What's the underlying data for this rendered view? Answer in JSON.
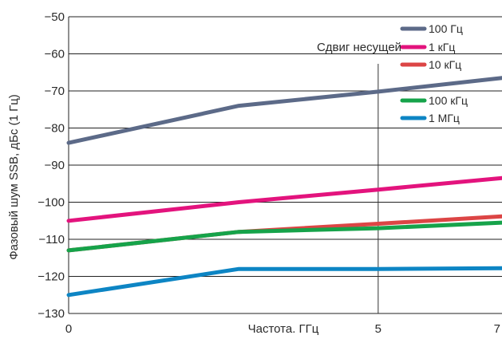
{
  "chart_data": {
    "type": "line",
    "xlabel": "Частота. ГГц",
    "ylabel": "Фазовый шум SSB, дБс (1 Гц)",
    "xlim": [
      0,
      7
    ],
    "ylim": [
      -130,
      -50
    ],
    "x_ticks": [
      "0",
      "5",
      "7"
    ],
    "y_ticks": [
      "−50",
      "−60",
      "−70",
      "−80",
      "−90",
      "−100",
      "−110",
      "−120",
      "−130"
    ],
    "grid": "horizontal",
    "legend_title": "Сдвиг несущей",
    "legend_position": "top-right",
    "series": [
      {
        "name": "100 Гц",
        "color": "#5c6a88",
        "x": [
          0,
          2.75,
          5,
          7
        ],
        "y": [
          -84,
          -74,
          -70.2,
          -66.5
        ]
      },
      {
        "name": "1 кГц",
        "color": "#e3137d",
        "x": [
          0,
          2.75,
          5,
          7
        ],
        "y": [
          -105,
          -100,
          -96.6,
          -93.5
        ]
      },
      {
        "name": "10 кГц",
        "color": "#dc4545",
        "x": [
          0,
          2.75,
          5,
          7
        ],
        "y": [
          -113,
          -108,
          -105.8,
          -103.8
        ]
      },
      {
        "name": "100 кГц",
        "color": "#16a34a",
        "x": [
          0,
          2.75,
          5,
          7
        ],
        "y": [
          -113,
          -108,
          -107,
          -105.5
        ]
      },
      {
        "name": "1 МГц",
        "color": "#0d85c4",
        "x": [
          0,
          2.75,
          5,
          7
        ],
        "y": [
          -125,
          -118,
          -118,
          -117.8
        ]
      }
    ]
  }
}
